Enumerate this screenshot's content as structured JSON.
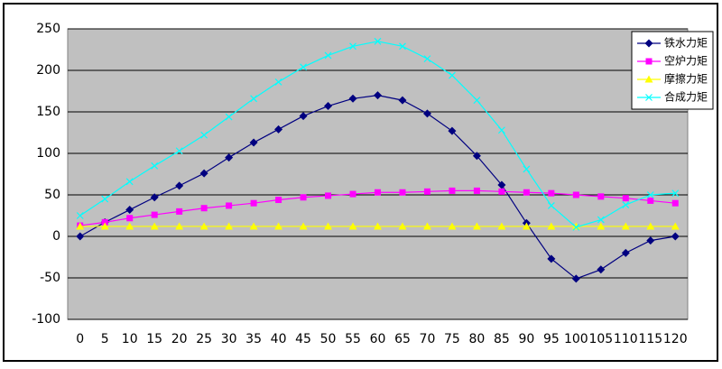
{
  "chart_data": {
    "type": "line",
    "categories": [
      "0",
      "5",
      "10",
      "15",
      "20",
      "25",
      "30",
      "35",
      "40",
      "45",
      "50",
      "55",
      "60",
      "65",
      "70",
      "75",
      "80",
      "85",
      "90",
      "95",
      "100",
      "105",
      "110",
      "115",
      "120"
    ],
    "series": [
      {
        "name": "铁水力矩",
        "color": "#000080",
        "marker": "diamond",
        "values": [
          0,
          17,
          32,
          47,
          61,
          76,
          95,
          113,
          129,
          145,
          157,
          166,
          170,
          164,
          148,
          127,
          97,
          62,
          16,
          -27,
          -51,
          -40,
          -20,
          -5,
          0
        ]
      },
      {
        "name": "空炉力矩",
        "color": "#ff00ff",
        "marker": "square",
        "values": [
          13,
          17,
          22,
          26,
          30,
          34,
          37,
          40,
          44,
          47,
          49,
          51,
          53,
          53,
          54,
          55,
          55,
          54,
          53,
          52,
          50,
          48,
          46,
          43,
          40
        ]
      },
      {
        "name": "摩擦力矩",
        "color": "#ffff00",
        "marker": "triangle",
        "values": [
          12,
          12,
          12,
          12,
          12,
          12,
          12,
          12,
          12,
          12,
          12,
          12,
          12,
          12,
          12,
          12,
          12,
          12,
          12,
          12,
          12,
          12,
          12,
          12,
          12
        ]
      },
      {
        "name": "合成力矩",
        "color": "#00ffff",
        "marker": "x",
        "values": [
          25,
          45,
          66,
          85,
          103,
          122,
          144,
          166,
          186,
          204,
          218,
          229,
          235,
          229,
          214,
          194,
          164,
          128,
          81,
          37,
          11,
          20,
          38,
          50,
          52
        ]
      }
    ],
    "ylim": [
      -100,
      250
    ],
    "yticks": [
      -100,
      -50,
      0,
      50,
      100,
      150,
      200,
      250
    ],
    "grid": true,
    "legend": "top-right"
  }
}
